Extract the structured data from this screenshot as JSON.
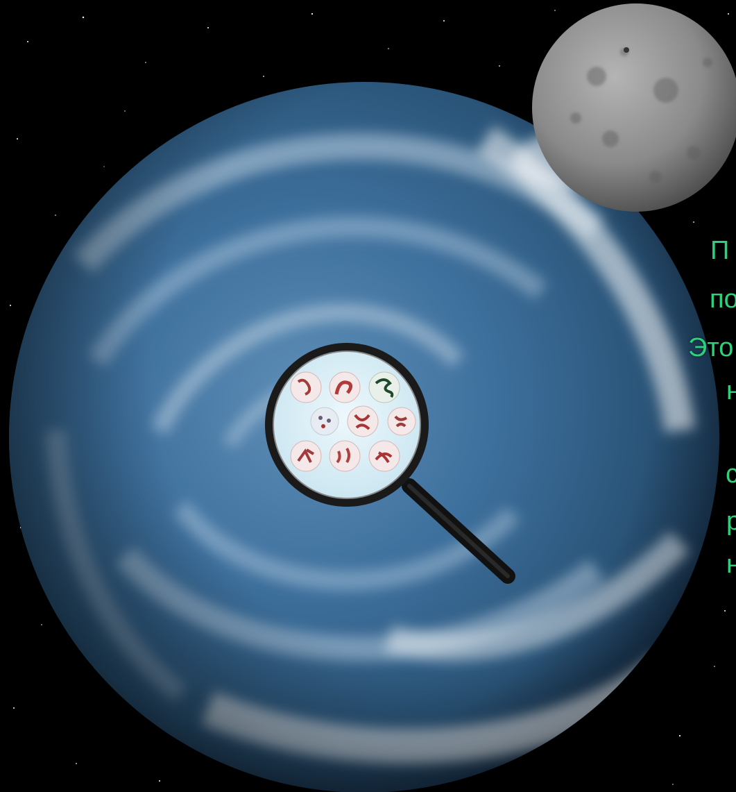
{
  "scene": {
    "description_text": {
      "lines": [
        "П",
        "по",
        "Это",
        "н",
        "",
        "с",
        "р",
        "н"
      ]
    },
    "colors": {
      "space": "#000000",
      "ocean": "#3d6f9c",
      "ocean_dark": "#1c3a57",
      "clouds": "#dbe9f4",
      "moon": "#8c8c8c",
      "text": "#2fd07a",
      "lens": "#d8eef7"
    },
    "icons": {
      "magnifier": "magnifying-glass-icon",
      "cells": "microorganism-icons"
    }
  }
}
